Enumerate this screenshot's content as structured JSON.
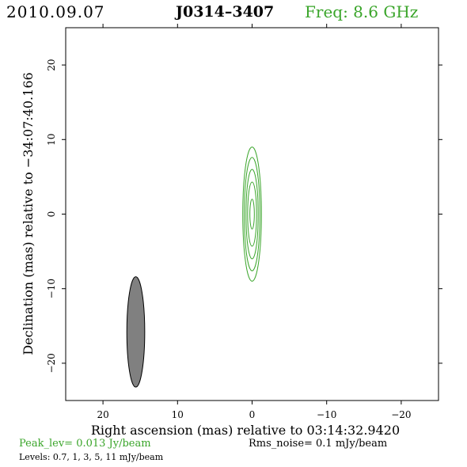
{
  "header": {
    "date": "2010.09.07",
    "source": "J0314–3407",
    "frequency": "Freq:  8.6  GHz"
  },
  "footer": {
    "peak": "Peak_lev=  0.013 Jy/beam",
    "rms": "Rms_noise=   0.1  mJy/beam",
    "levels": "Levels: 0.7,    1,    3,    5,   11  mJy/beam"
  },
  "colors": {
    "contour": "#3aa52a",
    "beam_fill": "#808080",
    "axes": "#000000"
  },
  "chart_data": {
    "type": "contour",
    "xlabel": "Right  ascension  (mas)  relative  to  03:14:32.9420",
    "ylabel": "Declination  (mas)  relative  to  −34:07:40.166",
    "xlim": [
      25,
      -25
    ],
    "ylim": [
      -25,
      25
    ],
    "x_ticks": [
      20,
      10,
      0,
      -10,
      -20
    ],
    "x_tick_labels": [
      "20",
      "10",
      "0",
      "−10",
      "−20"
    ],
    "y_ticks": [
      20,
      10,
      0,
      -10,
      -20
    ],
    "y_tick_labels": [
      "20",
      "10",
      "0",
      "−10",
      "−20"
    ],
    "contour_levels_mjy": [
      0.7,
      1,
      3,
      5,
      11
    ],
    "contours": [
      {
        "level": 0.7,
        "center": [
          0,
          0
        ],
        "semi_major": 9.0,
        "semi_minor": 1.25,
        "pa_deg": 0
      },
      {
        "level": 1,
        "center": [
          0,
          0
        ],
        "semi_major": 7.6,
        "semi_minor": 1.05,
        "pa_deg": 0
      },
      {
        "level": 3,
        "center": [
          0,
          0
        ],
        "semi_major": 6.0,
        "semi_minor": 0.82,
        "pa_deg": 0
      },
      {
        "level": 5,
        "center": [
          0,
          0
        ],
        "semi_major": 4.3,
        "semi_minor": 0.6,
        "pa_deg": 0
      },
      {
        "level": 11,
        "center": [
          0,
          0
        ],
        "semi_major": 2.0,
        "semi_minor": 0.3,
        "pa_deg": 0
      }
    ],
    "beam": {
      "center": [
        15.6,
        -15.8
      ],
      "semi_major": 7.4,
      "semi_minor": 1.2,
      "pa_deg": 0
    }
  }
}
